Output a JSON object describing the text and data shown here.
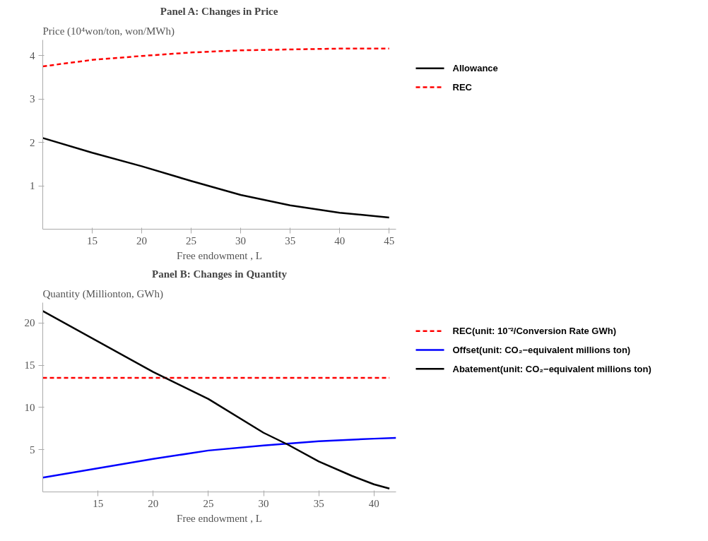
{
  "chart_data": [
    {
      "type": "line",
      "title": "Panel A: Changes in Price",
      "ylabel": "Price (10⁴won/ton, won/MWh)",
      "xlabel": "Free endowment , L",
      "x": [
        10,
        15,
        20,
        25,
        30,
        35,
        40,
        45
      ],
      "xlim": [
        10,
        45.7
      ],
      "xticks": [
        15,
        20,
        25,
        30,
        35,
        40,
        45
      ],
      "ylim": [
        0,
        4.36
      ],
      "yticks": [
        1,
        2,
        3,
        4
      ],
      "grid": false,
      "legend": "right",
      "series": [
        {
          "name": "Allowance",
          "color": "#000000",
          "line_style": "solid",
          "values": [
            2.1,
            1.76,
            1.45,
            1.11,
            0.79,
            0.55,
            0.38,
            0.27
          ]
        },
        {
          "name": "REC",
          "color": "#ff0000",
          "line_style": "dashed",
          "values": [
            3.75,
            3.9,
            3.99,
            4.07,
            4.12,
            4.14,
            4.16,
            4.16
          ]
        }
      ]
    },
    {
      "type": "line",
      "title": "Panel B: Changes in Quantity",
      "ylabel": "Quantity (Millionton, GWh)",
      "xlabel": "Free endowment , L",
      "xlim": [
        10,
        42
      ],
      "xticks": [
        15,
        20,
        25,
        30,
        35,
        40
      ],
      "ylim": [
        0,
        22.4
      ],
      "yticks": [
        5,
        10,
        15,
        20
      ],
      "grid": false,
      "legend": "right",
      "series": [
        {
          "name": "REC(unit: 10⁻²/Conversion Rate GWh)",
          "color": "#ff0000",
          "line_style": "dashed",
          "x": [
            10,
            20,
            30,
            41.4
          ],
          "values": [
            13.5,
            13.5,
            13.5,
            13.5
          ]
        },
        {
          "name": "Offset(unit: CO₂−equivalent millions ton)",
          "color": "#0000ff",
          "line_style": "solid",
          "x": [
            10,
            15,
            20,
            25,
            30,
            35,
            40,
            42
          ],
          "values": [
            1.7,
            2.8,
            3.9,
            4.9,
            5.5,
            6.0,
            6.3,
            6.4
          ]
        },
        {
          "name": "Abatement(unit: CO₂−equivalent millions ton)",
          "color": "#000000",
          "line_style": "solid",
          "x": [
            10,
            20,
            25,
            30,
            32.2,
            35,
            38,
            40,
            41.4
          ],
          "values": [
            21.4,
            14.2,
            11.0,
            7.0,
            5.6,
            3.6,
            1.9,
            0.9,
            0.4
          ]
        }
      ]
    }
  ]
}
